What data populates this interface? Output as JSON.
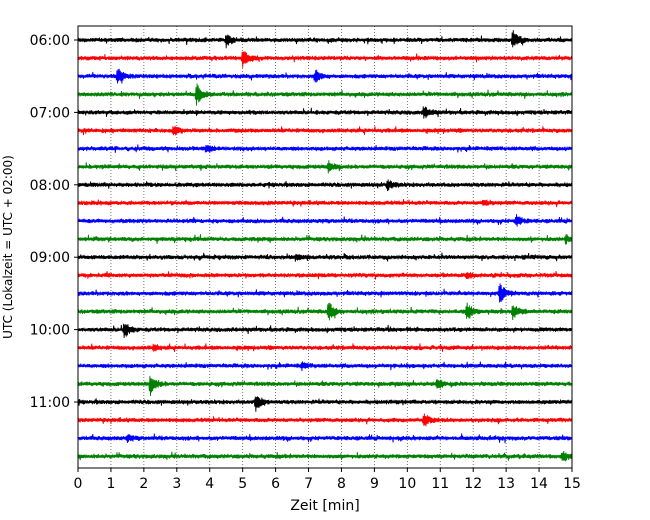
{
  "chart_data": {
    "type": "line",
    "title": "",
    "xlabel": "Zeit  [min]",
    "ylabel": "UTC (Lokalzeit = UTC + 02:00)",
    "xlim": [
      0,
      15
    ],
    "x_ticks": [
      0,
      1,
      2,
      3,
      4,
      5,
      6,
      7,
      8,
      9,
      10,
      11,
      12,
      13,
      14,
      15
    ],
    "x_tick_labels": [
      "0",
      "1",
      "2",
      "3",
      "4",
      "5",
      "6",
      "7",
      "8",
      "9",
      "10",
      "11",
      "12",
      "13",
      "14",
      "15"
    ],
    "y_tick_labels": [
      "06:00",
      "07:00",
      "08:00",
      "09:00",
      "10:00",
      "11:00"
    ],
    "grid": "vertical dotted at each minute",
    "trace_minutes": 15,
    "trace_colors": [
      "#000000",
      "#ff0000",
      "#0000ff",
      "#008000"
    ],
    "series": [
      {
        "start": "06:00",
        "events": [
          [
            4.5,
            0.6
          ],
          [
            13.2,
            0.9
          ]
        ]
      },
      {
        "start": "06:15",
        "events": [
          [
            5.0,
            0.9
          ]
        ]
      },
      {
        "start": "06:30",
        "events": [
          [
            1.2,
            0.9
          ],
          [
            7.2,
            0.6
          ]
        ]
      },
      {
        "start": "06:45",
        "events": [
          [
            3.6,
            1.0
          ]
        ]
      },
      {
        "start": "07:00",
        "events": [
          [
            10.5,
            0.6
          ]
        ]
      },
      {
        "start": "07:15",
        "events": [
          [
            2.9,
            0.5
          ]
        ]
      },
      {
        "start": "07:30",
        "events": [
          [
            3.9,
            0.4
          ]
        ]
      },
      {
        "start": "07:45",
        "events": [
          [
            7.6,
            0.5
          ]
        ]
      },
      {
        "start": "08:00",
        "events": [
          [
            9.4,
            0.5
          ]
        ]
      },
      {
        "start": "08:15",
        "events": [
          [
            12.3,
            0.3
          ]
        ]
      },
      {
        "start": "08:30",
        "events": [
          [
            13.3,
            0.6
          ]
        ]
      },
      {
        "start": "08:45",
        "events": [
          [
            14.8,
            0.4
          ]
        ]
      },
      {
        "start": "09:00",
        "events": [
          [
            6.6,
            0.3
          ]
        ]
      },
      {
        "start": "09:15",
        "events": [
          [
            11.8,
            0.3
          ]
        ]
      },
      {
        "start": "09:30",
        "events": [
          [
            12.8,
            1.0
          ]
        ]
      },
      {
        "start": "09:45",
        "events": [
          [
            7.6,
            1.0
          ],
          [
            11.8,
            1.0
          ],
          [
            13.2,
            0.8
          ]
        ]
      },
      {
        "start": "10:00",
        "events": [
          [
            1.4,
            0.8
          ]
        ]
      },
      {
        "start": "10:15",
        "events": [
          [
            2.3,
            0.3
          ]
        ]
      },
      {
        "start": "10:30",
        "events": [
          [
            6.8,
            0.3
          ]
        ]
      },
      {
        "start": "10:45",
        "events": [
          [
            2.2,
            1.0
          ],
          [
            10.9,
            0.5
          ]
        ]
      },
      {
        "start": "11:00",
        "events": [
          [
            5.4,
            0.9
          ]
        ]
      },
      {
        "start": "11:15",
        "events": [
          [
            10.5,
            0.6
          ]
        ]
      },
      {
        "start": "11:30",
        "events": [
          [
            1.5,
            0.3
          ]
        ]
      },
      {
        "start": "11:45",
        "events": [
          [
            14.7,
            0.5
          ]
        ]
      }
    ]
  }
}
